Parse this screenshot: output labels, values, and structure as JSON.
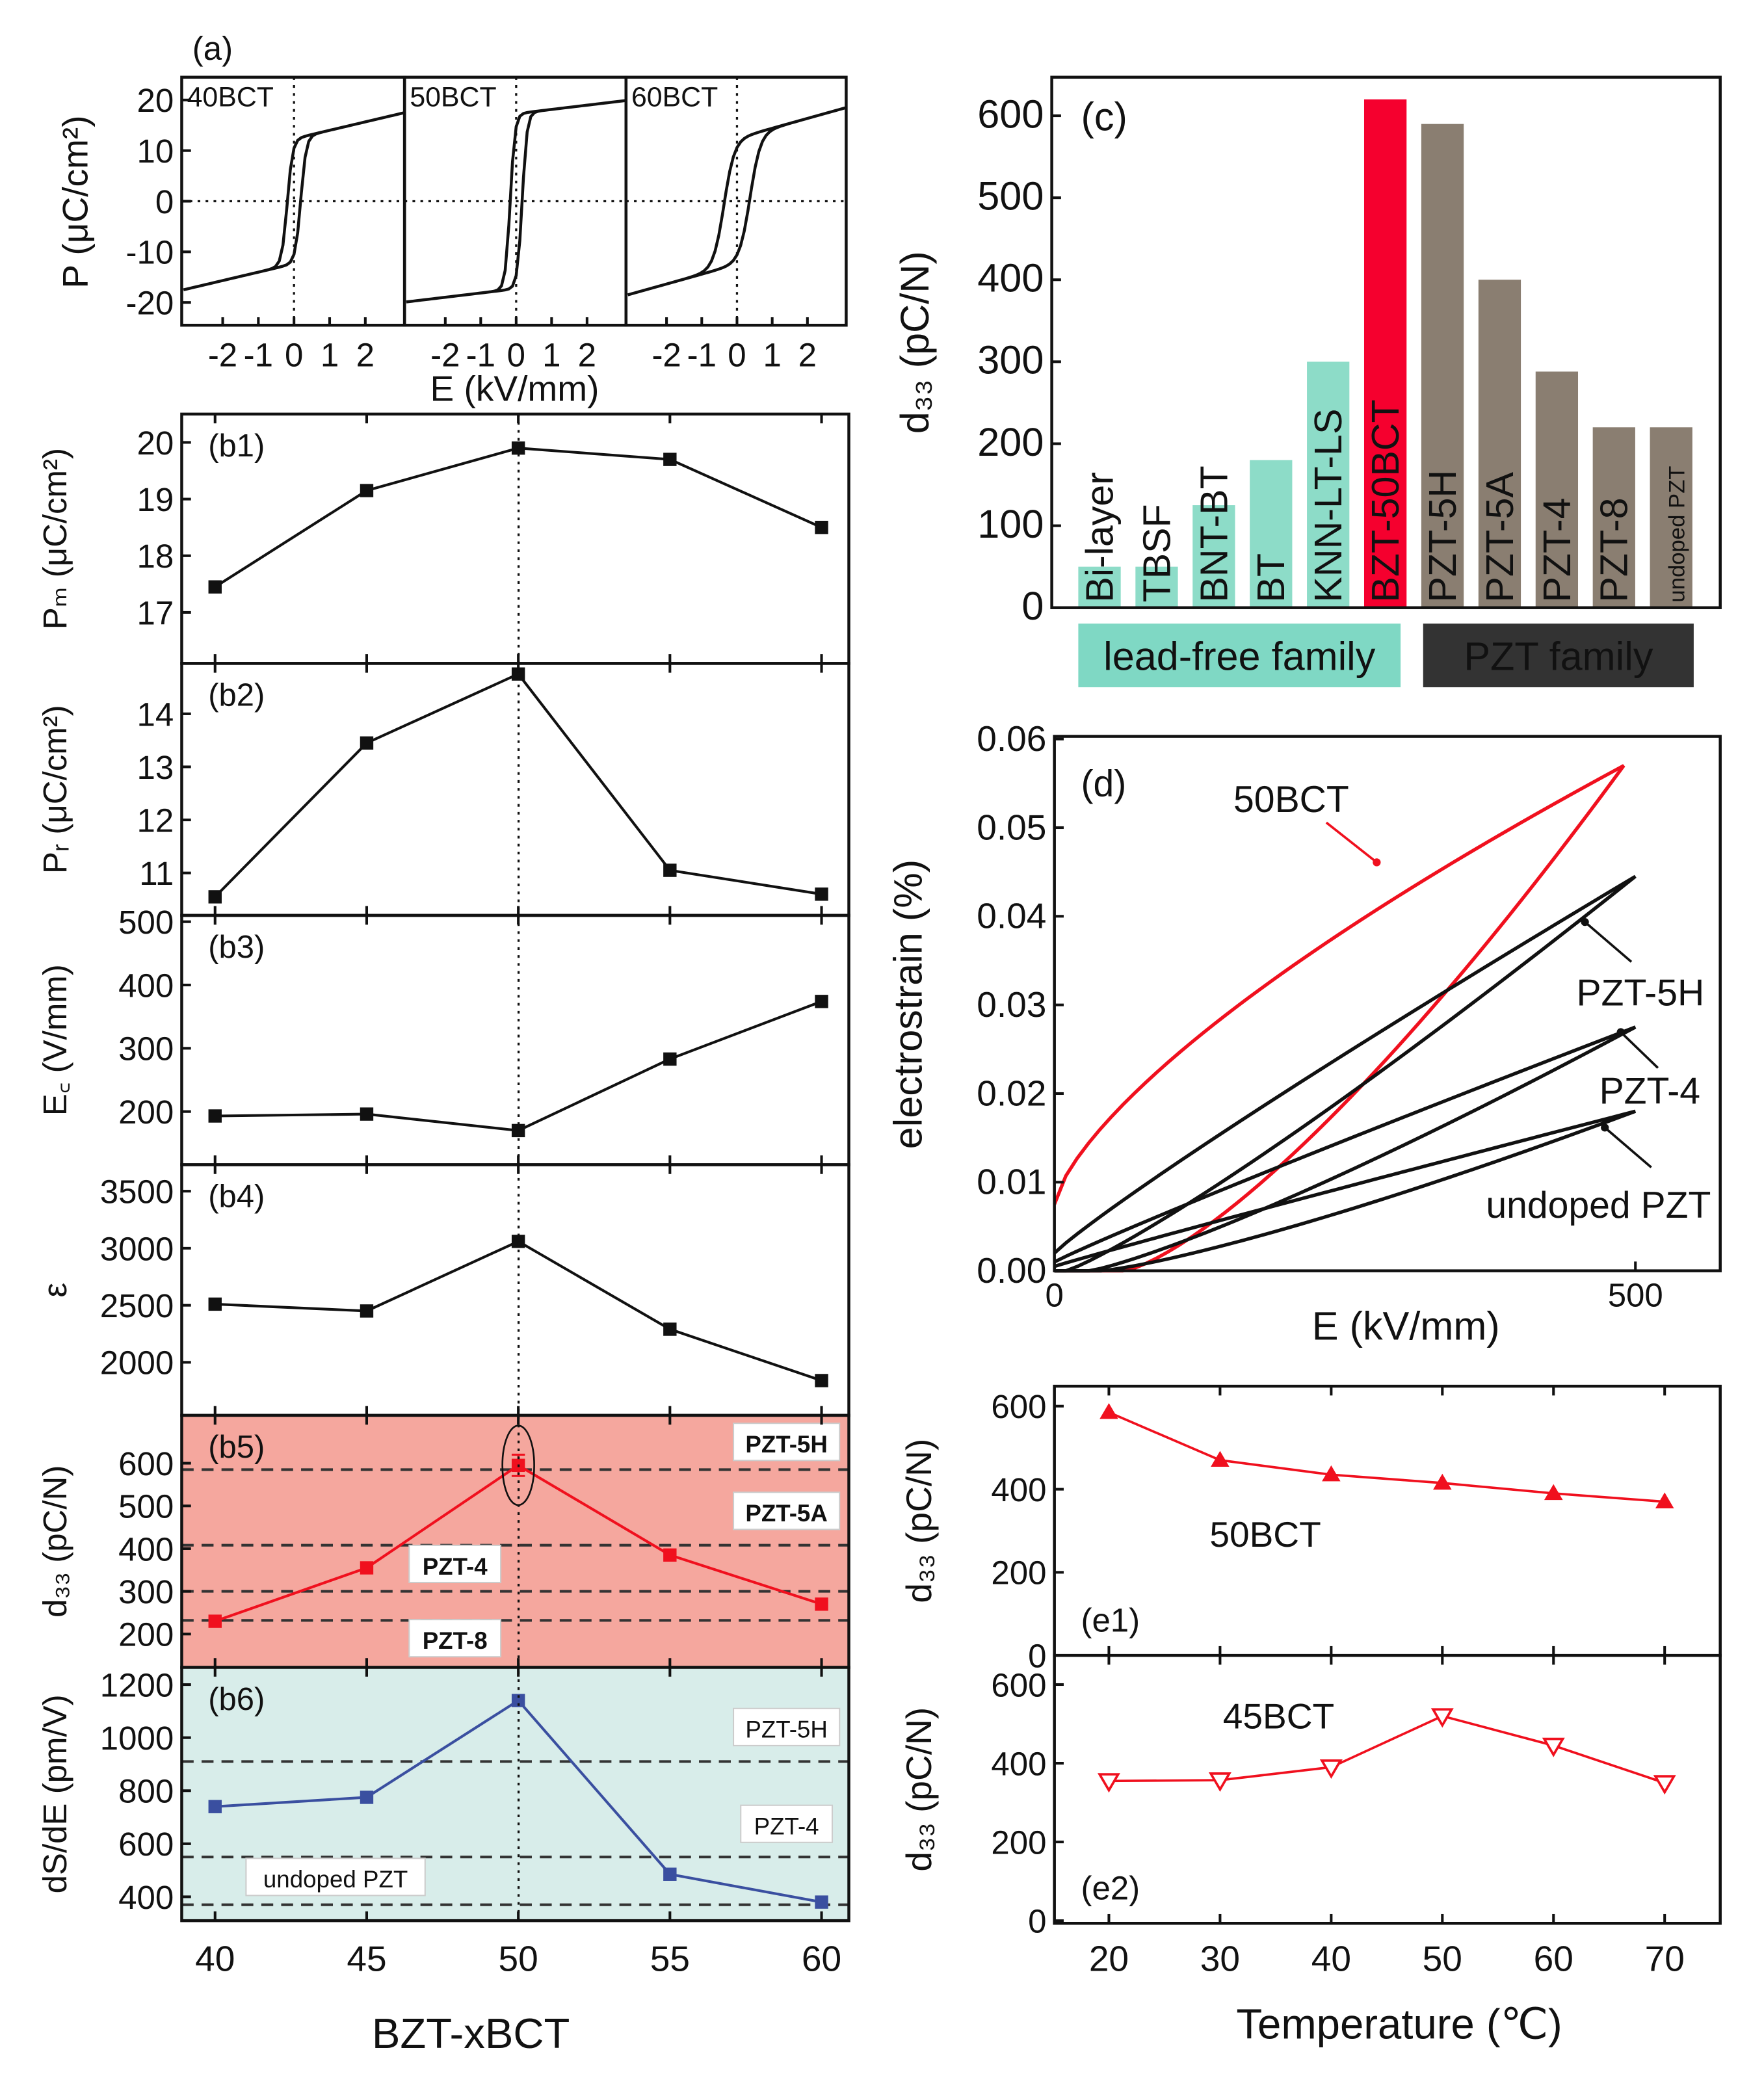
{
  "chart_data": [
    {
      "id": "a",
      "type": "line",
      "panel_label": "(a)",
      "xlabel": "E (kV/mm)",
      "ylabel": "P (μC/cm²)",
      "xlim": [
        -3.15,
        3.1
      ],
      "ylim": [
        -24.5,
        24.5
      ],
      "xticks": [
        -2,
        -1,
        0,
        1,
        2
      ],
      "xtick_labels": [
        "-2",
        "-1",
        "0",
        "1",
        "2"
      ],
      "yticks": [
        20,
        10,
        0,
        -10,
        -20
      ],
      "ytick_labels": [
        "20",
        "10",
        "0",
        "-10",
        "-20"
      ],
      "series": [
        {
          "name": "40BCT",
          "Pmax": 17.5,
          "Pr": 10.5,
          "Ec": 0.19,
          "Emax": 3.1
        },
        {
          "name": "50BCT",
          "Pmax": 19.9,
          "Pr": 14.7,
          "Ec": 0.17,
          "Emax": 3.1
        },
        {
          "name": "60BCT",
          "Pmax": 18.5,
          "Pr": 10.6,
          "Ec": 0.37,
          "Emax": 3.1
        }
      ]
    },
    {
      "id": "b1",
      "type": "line",
      "panel_label": "(b1)",
      "ylabel": "Pₘ (μC/cm²)",
      "x": [
        40,
        45,
        50,
        55,
        60
      ],
      "values": [
        17.45,
        19.15,
        19.9,
        19.7,
        18.5
      ],
      "xlim": [
        38.9,
        60.9
      ],
      "ylim": [
        16.1,
        20.5
      ],
      "yticks": [
        20,
        19,
        18,
        17
      ],
      "ytick_labels": [
        "20",
        "19",
        "18",
        "17"
      ]
    },
    {
      "id": "b2",
      "type": "line",
      "panel_label": "(b2)",
      "ylabel": "Pᵣ (μC/cm²)",
      "x": [
        40,
        45,
        50,
        55,
        60
      ],
      "values": [
        10.55,
        13.45,
        14.75,
        11.05,
        10.6
      ],
      "xlim": [
        38.9,
        60.9
      ],
      "ylim": [
        10.2,
        14.95
      ],
      "yticks": [
        14,
        13,
        12,
        11
      ],
      "ytick_labels": [
        "14",
        "13",
        "12",
        "11"
      ]
    },
    {
      "id": "b3",
      "type": "line",
      "panel_label": "(b3)",
      "ylabel": "E꜀ (V/mm)",
      "x": [
        40,
        45,
        50,
        55,
        60
      ],
      "values": [
        193,
        196,
        170,
        283,
        374
      ],
      "xlim": [
        38.9,
        60.9
      ],
      "ylim": [
        116,
        510
      ],
      "yticks": [
        500,
        400,
        300,
        200
      ],
      "ytick_labels": [
        "500",
        "400",
        "300",
        "200"
      ]
    },
    {
      "id": "b4",
      "type": "line",
      "panel_label": "(b4)",
      "ylabel": "ε",
      "x": [
        40,
        45,
        50,
        55,
        60
      ],
      "values": [
        2510,
        2450,
        3060,
        2290,
        1840
      ],
      "xlim": [
        38.9,
        60.9
      ],
      "ylim": [
        1535,
        3732
      ],
      "yticks": [
        3500,
        3000,
        2500,
        2000
      ],
      "ytick_labels": [
        "3500",
        "3000",
        "2500",
        "2000"
      ]
    },
    {
      "id": "b5",
      "type": "line",
      "panel_label": "(b5)",
      "ylabel": "d₃₃ (pC/N)",
      "x": [
        40,
        45,
        50,
        55,
        60
      ],
      "values": [
        230,
        355,
        595,
        385,
        270
      ],
      "error_at_50": 25,
      "xlim": [
        38.9,
        60.9
      ],
      "ylim": [
        122,
        712
      ],
      "yticks": [
        600,
        500,
        400,
        300,
        200
      ],
      "ytick_labels": [
        "600",
        "500",
        "400",
        "300",
        "200"
      ],
      "color": "#f0101e",
      "background": "#f5a79e",
      "reference_lines": [
        {
          "value": 585,
          "label": "PZT-5H"
        },
        {
          "value": 408,
          "label": "PZT-5A"
        },
        {
          "value": 300,
          "label": "PZT-4"
        },
        {
          "value": 232,
          "label": "PZT-8"
        }
      ]
    },
    {
      "id": "b6",
      "type": "line",
      "panel_label": "(b6)",
      "ylabel": "dS/dE (pm/V)",
      "xlabel": "BZT-xBCT",
      "x": [
        40,
        45,
        50,
        55,
        60
      ],
      "values": [
        740,
        775,
        1140,
        485,
        380
      ],
      "xlim": [
        38.9,
        60.9
      ],
      "ylim": [
        310,
        1265
      ],
      "xticks": [
        40,
        45,
        50,
        55,
        60
      ],
      "xtick_labels": [
        "40",
        "45",
        "50",
        "55",
        "60"
      ],
      "yticks": [
        1200,
        1000,
        800,
        600,
        400
      ],
      "ytick_labels": [
        "1200",
        "1000",
        "800",
        "600",
        "400"
      ],
      "color": "#3a4fa0",
      "background": "#d8edea",
      "reference_lines": [
        {
          "value": 910,
          "label": "PZT-5H"
        },
        {
          "value": 550,
          "label": "PZT-4"
        },
        {
          "value": 370,
          "label": "undoped PZT"
        }
      ]
    },
    {
      "id": "c",
      "type": "bar",
      "panel_label": "(c)",
      "ylabel": "d₃₃ (pC/N)",
      "ylim": [
        0,
        647
      ],
      "yticks": [
        600,
        500,
        400,
        300,
        200,
        100,
        0
      ],
      "ytick_labels": [
        "600",
        "500",
        "400",
        "300",
        "200",
        "100",
        "0"
      ],
      "categories": [
        "Bi-layer",
        "TBSF",
        "BNT-BT",
        "BT",
        "KNN-LT-LS",
        "BZT-50BCT",
        "PZT-5H",
        "PZT-5A",
        "PZT-4",
        "PZT-8",
        "undoped PZT"
      ],
      "values": [
        50,
        50,
        125,
        180,
        300,
        620,
        590,
        400,
        288,
        220,
        220
      ],
      "groups": [
        "lead-free",
        "lead-free",
        "lead-free",
        "lead-free",
        "lead-free",
        "highlight",
        "PZT",
        "PZT",
        "PZT",
        "PZT",
        "PZT"
      ],
      "colors": {
        "lead-free": "#8ddcc8",
        "highlight": "#f5002e",
        "PZT": "#8a7e71"
      },
      "families": [
        {
          "label": "lead-free family",
          "color": "#7fd8c4"
        },
        {
          "label": "PZT family",
          "color": "#333333"
        }
      ]
    },
    {
      "id": "d",
      "type": "line",
      "panel_label": "(d)",
      "xlabel": "E (kV/mm)",
      "ylabel": "electrostrain (%)",
      "xlim": [
        0,
        573
      ],
      "ylim": [
        0,
        0.0603
      ],
      "xticks": [
        0,
        500
      ],
      "xtick_labels": [
        "0",
        "500"
      ],
      "yticks": [
        0,
        0.01,
        0.02,
        0.03,
        0.04,
        0.05,
        0.06
      ],
      "ytick_labels": [
        "0.00",
        "0.01",
        "0.02",
        "0.03",
        "0.04",
        "0.05",
        "0.06"
      ],
      "series": [
        {
          "name": "50BCT",
          "color": "#f0101e",
          "Emax": 490,
          "Smax": 0.057,
          "S_remanent": 0.0075
        },
        {
          "name": "PZT-5H",
          "color": "#111111",
          "Emax": 500,
          "Smax": 0.0445,
          "S_remanent": 0.002
        },
        {
          "name": "PZT-4",
          "color": "#111111",
          "Emax": 500,
          "Smax": 0.0275,
          "S_remanent": 0.001
        },
        {
          "name": "undoped PZT",
          "color": "#111111",
          "Emax": 500,
          "Smax": 0.018,
          "S_remanent": 0.0005
        }
      ]
    },
    {
      "id": "e1",
      "type": "line",
      "panel_label": "(e1)",
      "ylabel": "d₃₃ (pC/N)",
      "series_name": "50BCT",
      "marker": "triangle-up-filled",
      "color": "#f0101e",
      "x": [
        20,
        30,
        40,
        50,
        60,
        70
      ],
      "values": [
        585,
        470,
        435,
        415,
        390,
        370
      ],
      "xlim": [
        15.1,
        75
      ],
      "ylim": [
        0,
        648
      ],
      "yticks": [
        600,
        400,
        200,
        0
      ],
      "ytick_labels": [
        "600",
        "400",
        "200",
        "0"
      ]
    },
    {
      "id": "e2",
      "type": "line",
      "panel_label": "(e2)",
      "ylabel": "d₃₃ (pC/N)",
      "xlabel": "Temperature (℃)",
      "series_name": "45BCT",
      "marker": "triangle-down-open",
      "color": "#f0101e",
      "x": [
        20,
        30,
        40,
        50,
        60,
        70
      ],
      "values": [
        355,
        357,
        390,
        520,
        445,
        350
      ],
      "xlim": [
        15.1,
        75
      ],
      "ylim": [
        -6.7,
        674
      ],
      "xticks": [
        20,
        30,
        40,
        50,
        60,
        70
      ],
      "xtick_labels": [
        "20",
        "30",
        "40",
        "50",
        "60",
        "70"
      ],
      "yticks": [
        600,
        400,
        200,
        0
      ],
      "ytick_labels": [
        "600",
        "400",
        "200",
        "0"
      ]
    }
  ]
}
